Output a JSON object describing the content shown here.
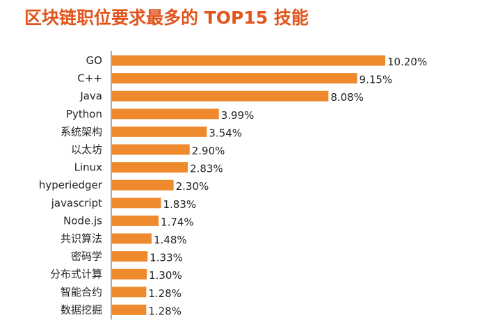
{
  "chart_data": {
    "type": "bar",
    "orientation": "horizontal",
    "title": "区块链职位要求最多的 TOP15 技能",
    "categories": [
      "GO",
      "C++",
      "Java",
      "Python",
      "系统架构",
      "以太坊",
      "Linux",
      "hyperiedger",
      "javascript",
      "Node.js",
      "共识算法",
      "密码学",
      "分布式计算",
      "智能合约",
      "数据挖掘"
    ],
    "values": [
      10.2,
      9.15,
      8.08,
      3.99,
      3.54,
      2.9,
      2.83,
      2.3,
      1.83,
      1.74,
      1.48,
      1.33,
      1.3,
      1.28,
      1.28
    ],
    "value_labels": [
      "10.20%",
      "9.15%",
      "8.08%",
      "3.99%",
      "3.54%",
      "2.90%",
      "2.83%",
      "2.30%",
      "1.83%",
      "1.74%",
      "1.48%",
      "1.33%",
      "1.30%",
      "1.28%",
      "1.28%"
    ],
    "xlim": [
      0,
      10.2
    ],
    "xlabel": "",
    "ylabel": "",
    "grid": false,
    "bar_color": "#ee8a2d",
    "axis_color": "#555555"
  }
}
